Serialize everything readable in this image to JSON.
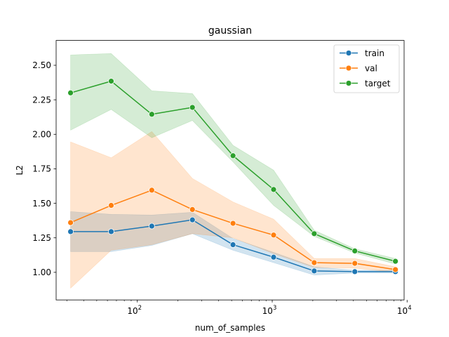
{
  "chart_data": {
    "type": "line",
    "title": "gaussian",
    "xlabel": "num_of_samples",
    "ylabel": "L2",
    "xscale": "log",
    "xlim": [
      25,
      9500
    ],
    "ylim": [
      0.8,
      2.68
    ],
    "x": [
      32,
      64,
      128,
      256,
      512,
      1024,
      2048,
      4096,
      8192
    ],
    "x_ticks": [
      {
        "value": 100,
        "base": "10",
        "exp": "2"
      },
      {
        "value": 1000,
        "base": "10",
        "exp": "3"
      },
      {
        "value": 10000,
        "base": "10",
        "exp": "4"
      }
    ],
    "y_ticks": [
      {
        "value": 1.0,
        "label": "1.00"
      },
      {
        "value": 1.25,
        "label": "1.25"
      },
      {
        "value": 1.5,
        "label": "1.50"
      },
      {
        "value": 1.75,
        "label": "1.75"
      },
      {
        "value": 2.0,
        "label": "2.00"
      },
      {
        "value": 2.25,
        "label": "2.25"
      },
      {
        "value": 2.5,
        "label": "2.50"
      }
    ],
    "grid": false,
    "legend_position": "top-right",
    "series": [
      {
        "name": "train",
        "color": "#1f77b4",
        "values": [
          1.295,
          1.295,
          1.335,
          1.38,
          1.2,
          1.11,
          1.01,
          1.005,
          1.005
        ],
        "band_low": [
          1.15,
          1.15,
          1.195,
          1.28,
          1.16,
          1.07,
          0.98,
          0.995,
          0.995
        ],
        "band_high": [
          1.44,
          1.42,
          1.415,
          1.435,
          1.245,
          1.145,
          1.04,
          1.015,
          1.015
        ]
      },
      {
        "name": "val",
        "color": "#ff7f0e",
        "values": [
          1.36,
          1.485,
          1.595,
          1.455,
          1.355,
          1.27,
          1.07,
          1.065,
          1.02
        ],
        "band_low": [
          0.885,
          1.16,
          1.2,
          1.28,
          1.25,
          1.135,
          1.035,
          1.03,
          1.0
        ],
        "band_high": [
          1.945,
          1.83,
          2.02,
          1.68,
          1.51,
          1.385,
          1.1,
          1.1,
          1.04
        ]
      },
      {
        "name": "target",
        "color": "#2ca02c",
        "values": [
          2.3,
          2.385,
          2.145,
          2.195,
          1.845,
          1.6,
          1.28,
          1.155,
          1.08
        ],
        "band_low": [
          2.03,
          2.18,
          1.975,
          2.1,
          1.8,
          1.485,
          1.26,
          1.14,
          1.06
        ],
        "band_high": [
          2.575,
          2.585,
          2.315,
          2.295,
          1.92,
          1.74,
          1.305,
          1.17,
          1.1
        ]
      }
    ]
  }
}
